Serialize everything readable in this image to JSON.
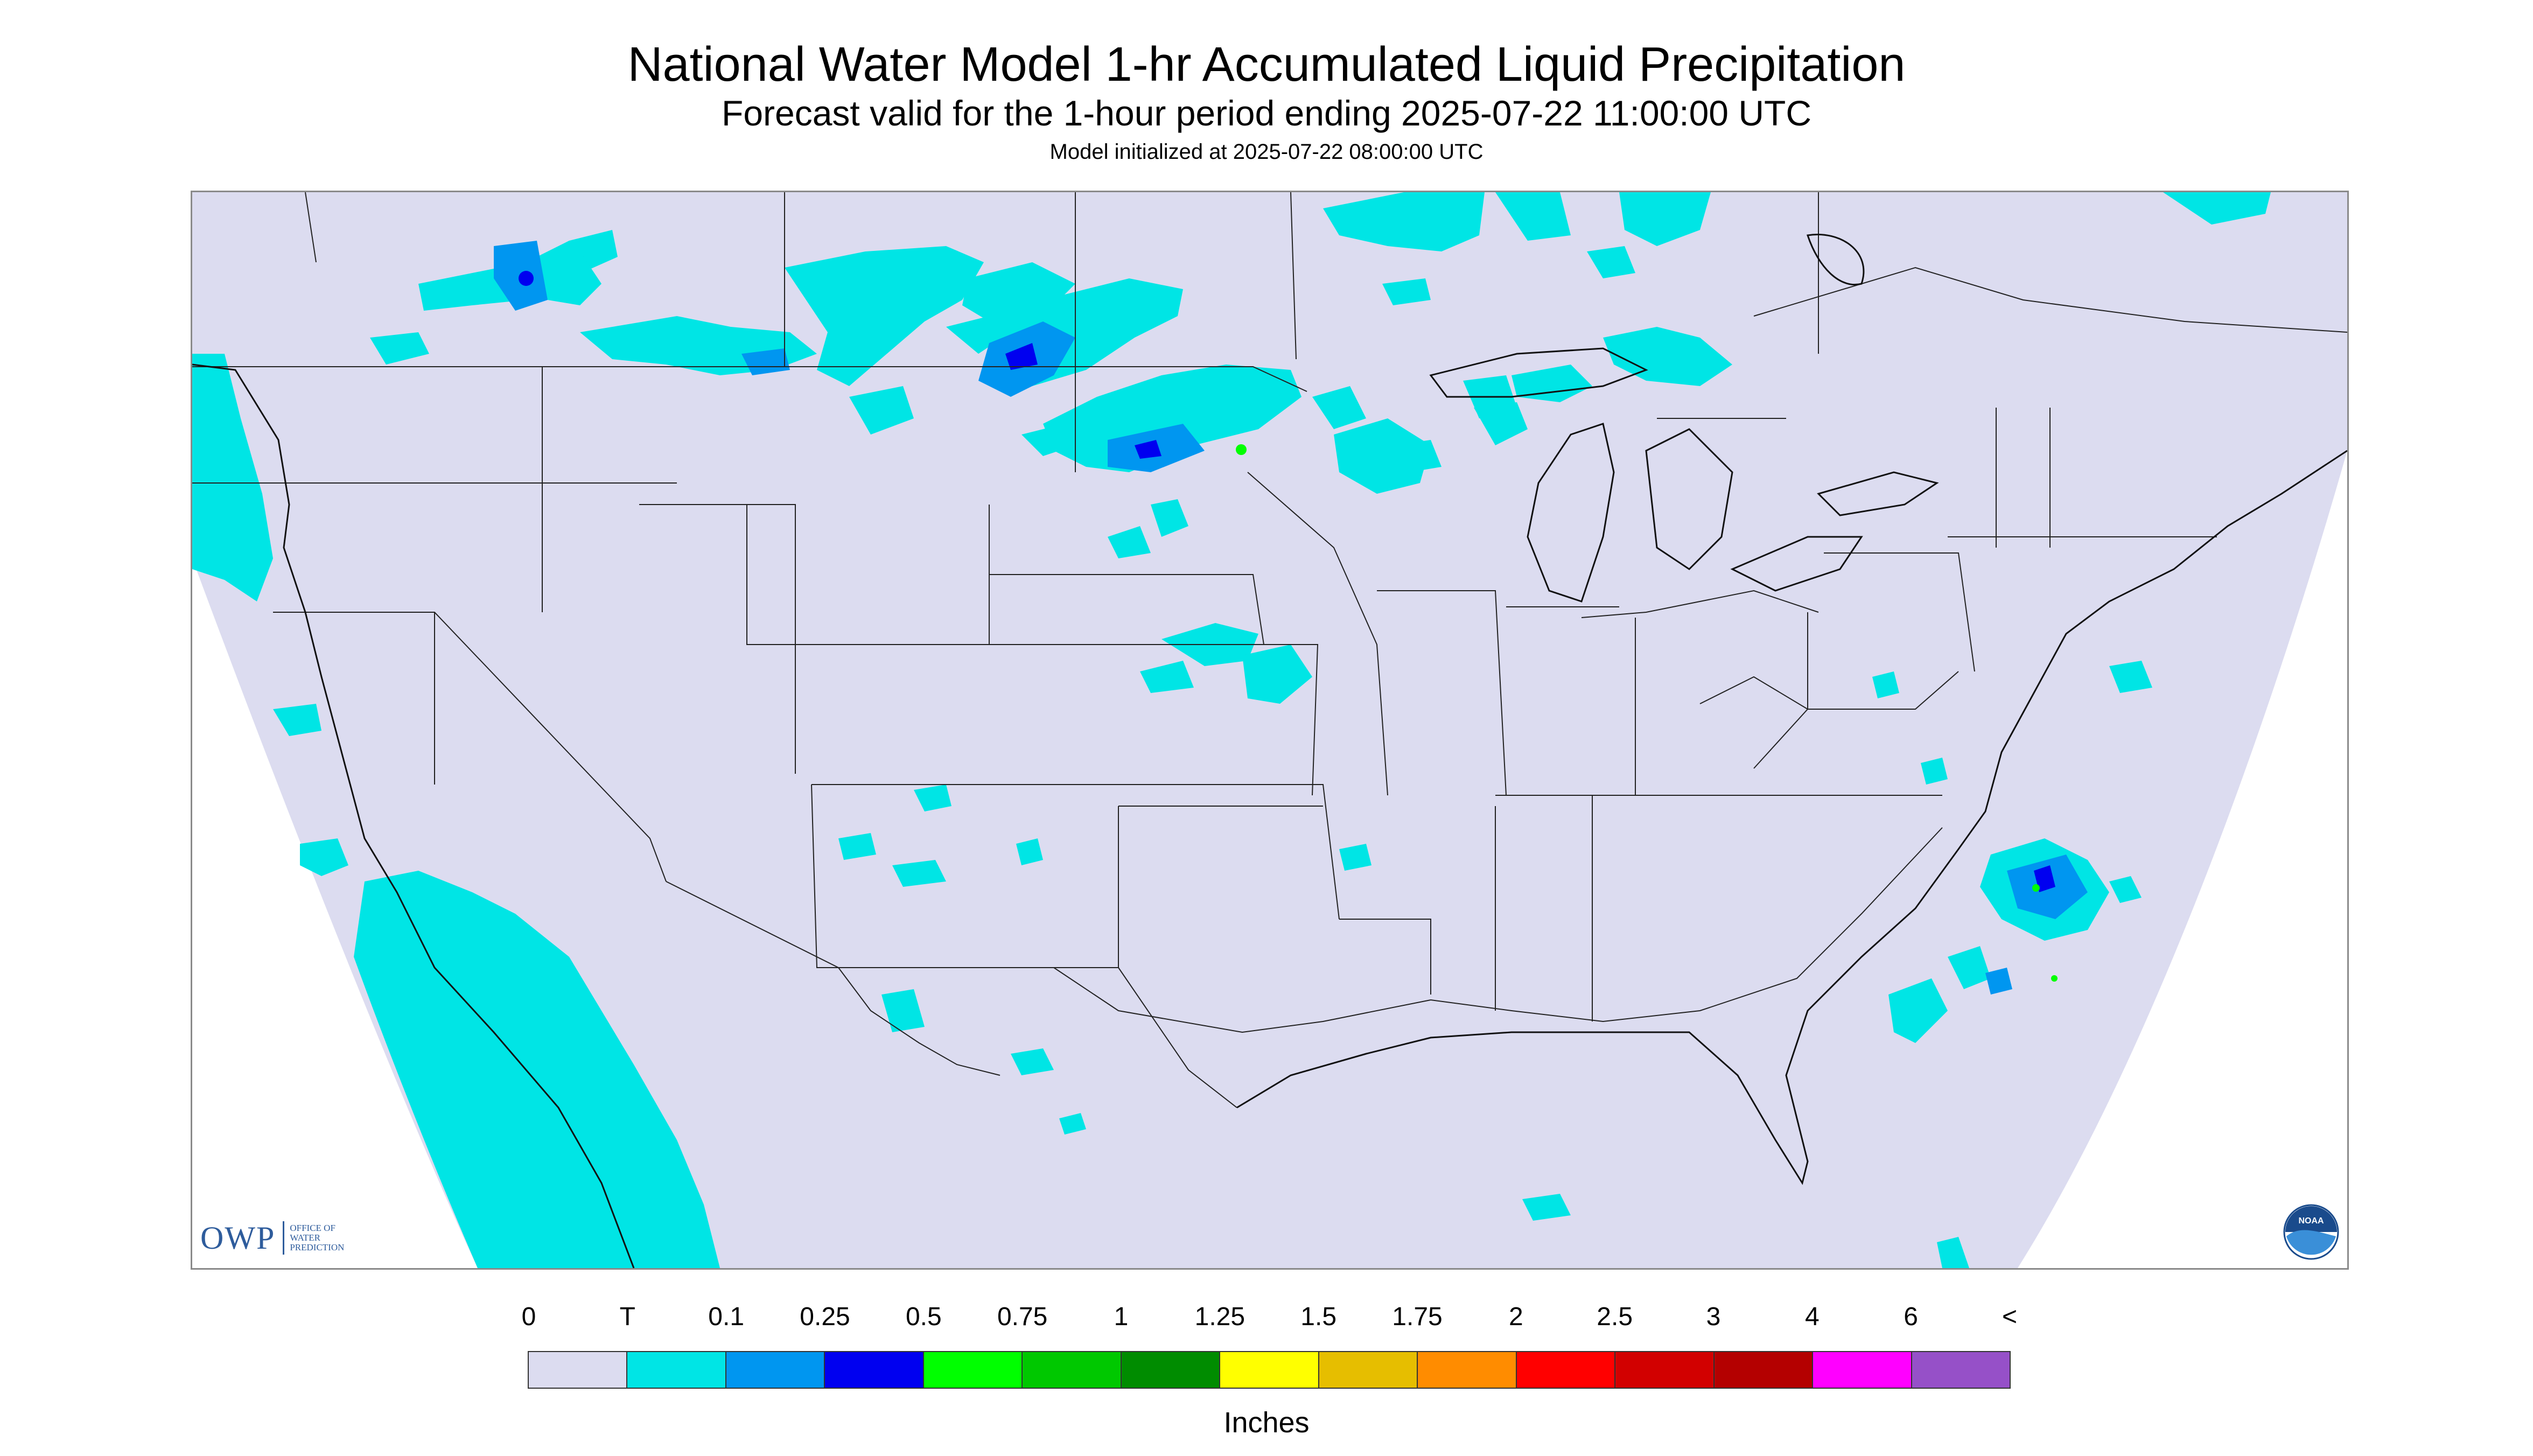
{
  "header": {
    "title": "National Water Model 1-hr Accumulated Liquid Precipitation",
    "subtitle": "Forecast valid for the 1-hour period ending 2025-07-22 11:00:00 UTC",
    "init": "Model initialized at 2025-07-22 08:00:00 UTC"
  },
  "logos": {
    "owp_mark": "OWP",
    "owp_line1": "OFFICE OF",
    "owp_line2": "WATER",
    "owp_line3": "PREDICTION",
    "noaa_text": "NOAA"
  },
  "legend": {
    "labels": [
      "0",
      "T",
      "0.1",
      "0.25",
      "0.5",
      "0.75",
      "1",
      "1.25",
      "1.5",
      "1.75",
      "2",
      "2.5",
      "3",
      "4",
      "6",
      "<"
    ],
    "colors": [
      "#dcdcf0",
      "#00e5e5",
      "#0096f0",
      "#0000f0",
      "#00ff00",
      "#00c800",
      "#008c00",
      "#ffff00",
      "#e6be00",
      "#ff8c00",
      "#ff0000",
      "#d20000",
      "#b40000",
      "#ff00ff",
      "#9650c8"
    ],
    "units": "Inches"
  },
  "map_colors": {
    "background": "#dcdcf0",
    "outside": "#ffffff",
    "trace": "#00e5e5",
    "light": "#0096f0",
    "moderate": "#0000f0",
    "heavy": "#00ff00",
    "borders": "#222222"
  }
}
